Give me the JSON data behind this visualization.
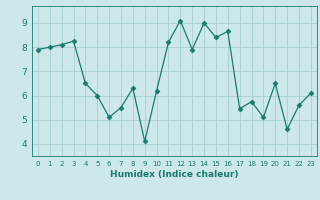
{
  "x": [
    0,
    1,
    2,
    3,
    4,
    5,
    6,
    7,
    8,
    9,
    10,
    11,
    12,
    13,
    14,
    15,
    16,
    17,
    18,
    19,
    20,
    21,
    22,
    23
  ],
  "y": [
    7.9,
    8.0,
    8.1,
    8.25,
    6.5,
    6.0,
    5.1,
    5.5,
    6.3,
    4.1,
    6.2,
    8.2,
    9.1,
    7.9,
    9.0,
    8.4,
    8.65,
    5.45,
    5.75,
    5.1,
    6.5,
    4.6,
    5.6,
    6.1
  ],
  "line_color": "#1a7a6e",
  "marker": "D",
  "marker_size": 2.5,
  "bg_color": "#cce8ea",
  "grid_color": "#aacfcf",
  "xlabel": "Humidex (Indice chaleur)",
  "ylim": [
    3.5,
    9.7
  ],
  "xlim": [
    -0.5,
    23.5
  ],
  "yticks": [
    4,
    5,
    6,
    7,
    8,
    9
  ],
  "xticks": [
    0,
    1,
    2,
    3,
    4,
    5,
    6,
    7,
    8,
    9,
    10,
    11,
    12,
    13,
    14,
    15,
    16,
    17,
    18,
    19,
    20,
    21,
    22,
    23
  ]
}
